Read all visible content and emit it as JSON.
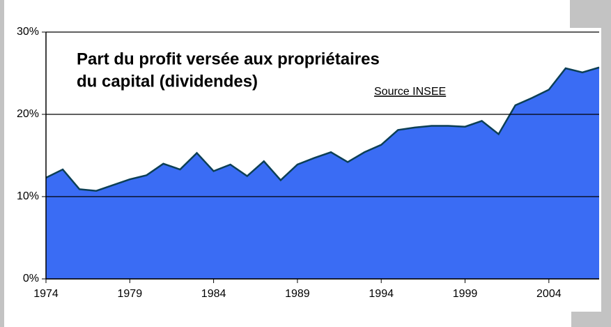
{
  "chart_data": {
    "type": "area",
    "title": [
      "Part du profit versée aux propriétaires",
      "du capital (dividendes)"
    ],
    "annotation": "Source INSEE",
    "x": [
      1974,
      1975,
      1976,
      1977,
      1978,
      1979,
      1980,
      1981,
      1982,
      1983,
      1984,
      1985,
      1986,
      1987,
      1988,
      1989,
      1990,
      1991,
      1992,
      1993,
      1994,
      1995,
      1996,
      1997,
      1998,
      1999,
      2000,
      2001,
      2002,
      2003,
      2004,
      2005,
      2006,
      2007
    ],
    "values": [
      12.3,
      13.3,
      10.9,
      10.7,
      11.4,
      12.1,
      12.6,
      14.0,
      13.3,
      15.3,
      13.1,
      13.9,
      12.5,
      14.3,
      12.0,
      13.9,
      14.7,
      15.4,
      14.2,
      15.4,
      16.3,
      18.1,
      18.4,
      18.6,
      18.6,
      18.5,
      19.2,
      17.6,
      21.1,
      22.0,
      23.0,
      25.6,
      25.1,
      25.7
    ],
    "color": "#3a6cf4",
    "xlim": [
      1974,
      2007
    ],
    "xticks": [
      1974,
      1979,
      1984,
      1989,
      1994,
      1999,
      2004
    ],
    "ylim": [
      0,
      30
    ],
    "yticks": [
      {
        "value": 0,
        "label": "0%"
      },
      {
        "value": 10,
        "label": "10%"
      },
      {
        "value": 20,
        "label": "20%"
      },
      {
        "value": 30,
        "label": "30%"
      }
    ],
    "grid": true
  }
}
